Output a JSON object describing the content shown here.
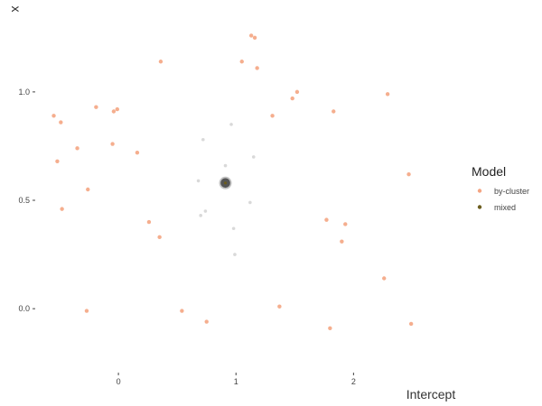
{
  "chart_data": {
    "type": "scatter",
    "xlabel": "Intercept",
    "ylabel": "x",
    "xlim": [
      -0.7,
      2.95
    ],
    "ylim": [
      -0.22,
      1.32
    ],
    "x_ticks": [
      0,
      1,
      2
    ],
    "x_tick_labels": [
      "0",
      "1",
      "2"
    ],
    "y_ticks": [
      0.0,
      0.5,
      1.0
    ],
    "y_tick_labels": [
      "0.0",
      "0.5",
      "1.0"
    ],
    "grid": false,
    "legend_title": "Model",
    "legend_position": "right",
    "series": [
      {
        "name": "by-cluster",
        "color": "#f4a582",
        "points": [
          [
            -0.55,
            0.89
          ],
          [
            -0.49,
            0.86
          ],
          [
            -0.19,
            0.93
          ],
          [
            -0.04,
            0.91
          ],
          [
            -0.01,
            0.92
          ],
          [
            0.36,
            1.14
          ],
          [
            1.13,
            1.26
          ],
          [
            1.16,
            1.25
          ],
          [
            1.05,
            1.14
          ],
          [
            1.18,
            1.11
          ],
          [
            1.52,
            1.0
          ],
          [
            1.48,
            0.97
          ],
          [
            1.31,
            0.89
          ],
          [
            1.83,
            0.91
          ],
          [
            2.29,
            0.99
          ],
          [
            -0.35,
            0.74
          ],
          [
            -0.05,
            0.76
          ],
          [
            0.16,
            0.72
          ],
          [
            -0.52,
            0.68
          ],
          [
            -0.26,
            0.55
          ],
          [
            -0.48,
            0.46
          ],
          [
            0.26,
            0.4
          ],
          [
            0.35,
            0.33
          ],
          [
            2.47,
            0.62
          ],
          [
            1.77,
            0.41
          ],
          [
            1.93,
            0.39
          ],
          [
            1.9,
            0.31
          ],
          [
            2.26,
            0.14
          ],
          [
            1.37,
            0.01
          ],
          [
            0.54,
            -0.01
          ],
          [
            -0.27,
            -0.01
          ],
          [
            0.75,
            -0.06
          ],
          [
            1.8,
            -0.09
          ],
          [
            2.49,
            -0.07
          ]
        ]
      },
      {
        "name": "mixed",
        "color": "#6b5d1e",
        "points": [
          [
            0.91,
            0.58
          ]
        ]
      }
    ],
    "faint_points": [
      [
        0.72,
        0.78
      ],
      [
        0.96,
        0.85
      ],
      [
        0.91,
        0.66
      ],
      [
        1.15,
        0.7
      ],
      [
        0.68,
        0.59
      ],
      [
        0.74,
        0.45
      ],
      [
        0.7,
        0.43
      ],
      [
        1.12,
        0.49
      ],
      [
        0.98,
        0.37
      ],
      [
        0.99,
        0.25
      ]
    ],
    "faint_color": "#cfcfcf",
    "mean_color": "#555555"
  }
}
